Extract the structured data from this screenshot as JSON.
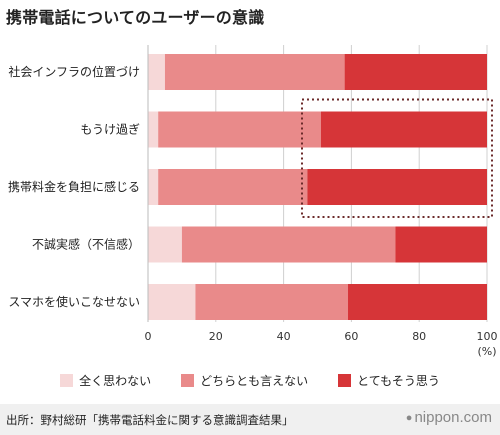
{
  "title": "携帯電話についてのユーザーの意識",
  "chart_data": {
    "type": "bar",
    "orientation": "horizontal",
    "stacked": true,
    "categories": [
      "社会インフラの位置づけ",
      "もうけ過ぎ",
      "携帯料金を負担に感じる",
      "不誠実感（不信感）",
      "スマホを使いこなせない"
    ],
    "series": [
      {
        "name": "全く思わない",
        "color": "#f6d8d8",
        "values": [
          5,
          3,
          3,
          10,
          14
        ]
      },
      {
        "name": "どちらとも言えない",
        "color": "#e98a8a",
        "values": [
          53,
          48,
          44,
          63,
          45
        ]
      },
      {
        "name": "とてもそう思う",
        "color": "#d63538",
        "values": [
          42,
          49,
          53,
          27,
          41
        ]
      }
    ],
    "xlim": [
      0,
      100
    ],
    "xticks": [
      "0",
      "20",
      "40",
      "60",
      "80",
      "100"
    ],
    "xunit": "(%)",
    "grid": true,
    "legend_position": "bottom",
    "highlight": {
      "categories": [
        "もうけ過ぎ",
        "携帯料金を負担に感じる"
      ],
      "style": "dotted box"
    }
  },
  "footer": {
    "source": "出所：野村総研「携帯電話料金に関する意識調査結果」",
    "brand": "nippon.com",
    "brand_icon": "dot-icon"
  }
}
